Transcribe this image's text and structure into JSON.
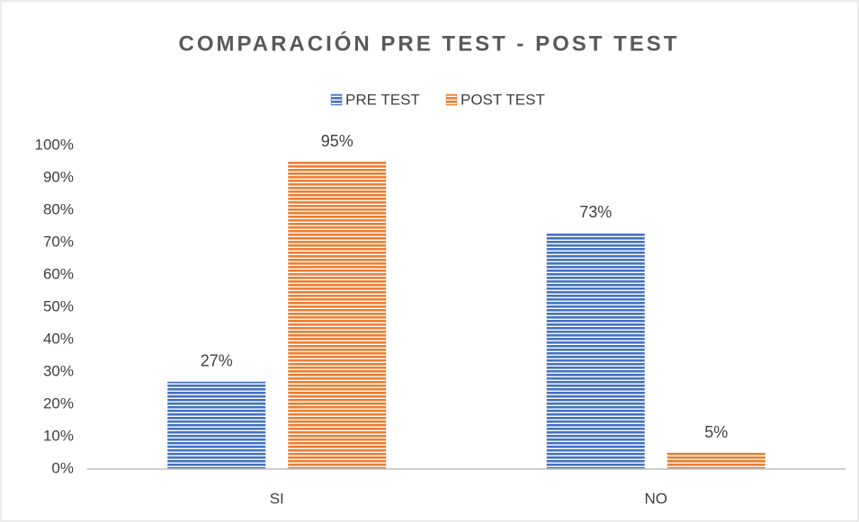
{
  "chart_data": {
    "type": "bar",
    "title": "COMPARACIÓN PRE TEST - POST TEST",
    "categories": [
      "SI",
      "NO"
    ],
    "series": [
      {
        "name": "PRE TEST",
        "color": "#4472c4",
        "values": [
          27,
          73
        ],
        "value_labels": [
          "27%",
          "73%"
        ]
      },
      {
        "name": "POST TEST",
        "color": "#ed7d31",
        "values": [
          95,
          5
        ],
        "value_labels": [
          "95%",
          "5%"
        ]
      }
    ],
    "ylim": [
      0,
      100
    ],
    "yticks": [
      {
        "value": 0,
        "label": "0%"
      },
      {
        "value": 10,
        "label": "10%"
      },
      {
        "value": 20,
        "label": "20%"
      },
      {
        "value": 30,
        "label": "30%"
      },
      {
        "value": 40,
        "label": "40%"
      },
      {
        "value": 50,
        "label": "50%"
      },
      {
        "value": 60,
        "label": "60%"
      },
      {
        "value": 70,
        "label": "70%"
      },
      {
        "value": 80,
        "label": "80%"
      },
      {
        "value": 90,
        "label": "90%"
      },
      {
        "value": 100,
        "label": "100%"
      }
    ],
    "grid": false,
    "legend": "top"
  }
}
